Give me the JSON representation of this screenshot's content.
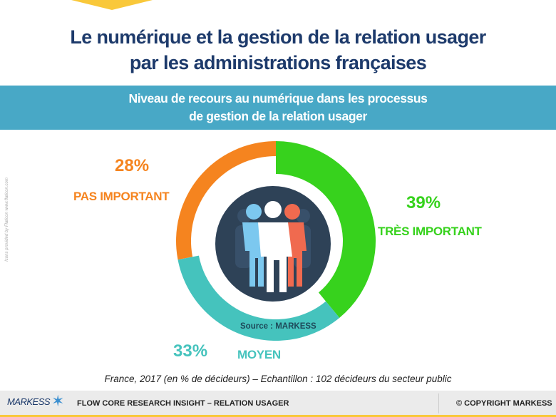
{
  "header": {
    "title_line1": "Le numérique et la gestion de la relation usager",
    "title_line2": "par les administrations françaises"
  },
  "banner": {
    "line1": "Niveau de recours au numérique dans les processus",
    "line2": "de gestion de la relation usager"
  },
  "side_credit": "Icons provided by Flaticon www.flaticon.com",
  "chart_data": {
    "type": "pie",
    "donut": true,
    "categories": [
      "TRÈS IMPORTANT",
      "MOYEN",
      "PAS IMPORTANT"
    ],
    "values": [
      39,
      33,
      28
    ],
    "value_labels": [
      "39%",
      "33%",
      "28%"
    ],
    "colors": [
      "#37d21d",
      "#45c3bd",
      "#f5841f"
    ],
    "center_icon": "people-group-icon",
    "source": "Source : MARKESS"
  },
  "caption": "France, 2017 (en % de décideurs) – Echantillon : 102 décideurs du secteur public",
  "footer": {
    "logo": "MARKESS",
    "text": "FLOW CORE RESEARCH INSIGHT – RELATION USAGER",
    "copyright": "© COPYRIGHT MARKESS"
  }
}
